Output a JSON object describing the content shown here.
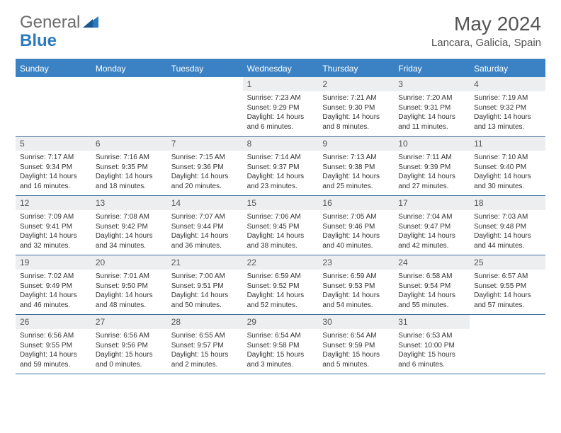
{
  "logo": {
    "text1": "General",
    "text2": "Blue"
  },
  "title": "May 2024",
  "location": "Lancara, Galicia, Spain",
  "colors": {
    "header_bg": "#3b82c4",
    "daynum_bg": "#eceef0",
    "border": "#3b6fa0"
  },
  "daynames": [
    "Sunday",
    "Monday",
    "Tuesday",
    "Wednesday",
    "Thursday",
    "Friday",
    "Saturday"
  ],
  "weeks": [
    [
      {
        "n": "",
        "sr": "",
        "ss": "",
        "dl": ""
      },
      {
        "n": "",
        "sr": "",
        "ss": "",
        "dl": ""
      },
      {
        "n": "",
        "sr": "",
        "ss": "",
        "dl": ""
      },
      {
        "n": "1",
        "sr": "Sunrise: 7:23 AM",
        "ss": "Sunset: 9:29 PM",
        "dl": "Daylight: 14 hours and 6 minutes."
      },
      {
        "n": "2",
        "sr": "Sunrise: 7:21 AM",
        "ss": "Sunset: 9:30 PM",
        "dl": "Daylight: 14 hours and 8 minutes."
      },
      {
        "n": "3",
        "sr": "Sunrise: 7:20 AM",
        "ss": "Sunset: 9:31 PM",
        "dl": "Daylight: 14 hours and 11 minutes."
      },
      {
        "n": "4",
        "sr": "Sunrise: 7:19 AM",
        "ss": "Sunset: 9:32 PM",
        "dl": "Daylight: 14 hours and 13 minutes."
      }
    ],
    [
      {
        "n": "5",
        "sr": "Sunrise: 7:17 AM",
        "ss": "Sunset: 9:34 PM",
        "dl": "Daylight: 14 hours and 16 minutes."
      },
      {
        "n": "6",
        "sr": "Sunrise: 7:16 AM",
        "ss": "Sunset: 9:35 PM",
        "dl": "Daylight: 14 hours and 18 minutes."
      },
      {
        "n": "7",
        "sr": "Sunrise: 7:15 AM",
        "ss": "Sunset: 9:36 PM",
        "dl": "Daylight: 14 hours and 20 minutes."
      },
      {
        "n": "8",
        "sr": "Sunrise: 7:14 AM",
        "ss": "Sunset: 9:37 PM",
        "dl": "Daylight: 14 hours and 23 minutes."
      },
      {
        "n": "9",
        "sr": "Sunrise: 7:13 AM",
        "ss": "Sunset: 9:38 PM",
        "dl": "Daylight: 14 hours and 25 minutes."
      },
      {
        "n": "10",
        "sr": "Sunrise: 7:11 AM",
        "ss": "Sunset: 9:39 PM",
        "dl": "Daylight: 14 hours and 27 minutes."
      },
      {
        "n": "11",
        "sr": "Sunrise: 7:10 AM",
        "ss": "Sunset: 9:40 PM",
        "dl": "Daylight: 14 hours and 30 minutes."
      }
    ],
    [
      {
        "n": "12",
        "sr": "Sunrise: 7:09 AM",
        "ss": "Sunset: 9:41 PM",
        "dl": "Daylight: 14 hours and 32 minutes."
      },
      {
        "n": "13",
        "sr": "Sunrise: 7:08 AM",
        "ss": "Sunset: 9:42 PM",
        "dl": "Daylight: 14 hours and 34 minutes."
      },
      {
        "n": "14",
        "sr": "Sunrise: 7:07 AM",
        "ss": "Sunset: 9:44 PM",
        "dl": "Daylight: 14 hours and 36 minutes."
      },
      {
        "n": "15",
        "sr": "Sunrise: 7:06 AM",
        "ss": "Sunset: 9:45 PM",
        "dl": "Daylight: 14 hours and 38 minutes."
      },
      {
        "n": "16",
        "sr": "Sunrise: 7:05 AM",
        "ss": "Sunset: 9:46 PM",
        "dl": "Daylight: 14 hours and 40 minutes."
      },
      {
        "n": "17",
        "sr": "Sunrise: 7:04 AM",
        "ss": "Sunset: 9:47 PM",
        "dl": "Daylight: 14 hours and 42 minutes."
      },
      {
        "n": "18",
        "sr": "Sunrise: 7:03 AM",
        "ss": "Sunset: 9:48 PM",
        "dl": "Daylight: 14 hours and 44 minutes."
      }
    ],
    [
      {
        "n": "19",
        "sr": "Sunrise: 7:02 AM",
        "ss": "Sunset: 9:49 PM",
        "dl": "Daylight: 14 hours and 46 minutes."
      },
      {
        "n": "20",
        "sr": "Sunrise: 7:01 AM",
        "ss": "Sunset: 9:50 PM",
        "dl": "Daylight: 14 hours and 48 minutes."
      },
      {
        "n": "21",
        "sr": "Sunrise: 7:00 AM",
        "ss": "Sunset: 9:51 PM",
        "dl": "Daylight: 14 hours and 50 minutes."
      },
      {
        "n": "22",
        "sr": "Sunrise: 6:59 AM",
        "ss": "Sunset: 9:52 PM",
        "dl": "Daylight: 14 hours and 52 minutes."
      },
      {
        "n": "23",
        "sr": "Sunrise: 6:59 AM",
        "ss": "Sunset: 9:53 PM",
        "dl": "Daylight: 14 hours and 54 minutes."
      },
      {
        "n": "24",
        "sr": "Sunrise: 6:58 AM",
        "ss": "Sunset: 9:54 PM",
        "dl": "Daylight: 14 hours and 55 minutes."
      },
      {
        "n": "25",
        "sr": "Sunrise: 6:57 AM",
        "ss": "Sunset: 9:55 PM",
        "dl": "Daylight: 14 hours and 57 minutes."
      }
    ],
    [
      {
        "n": "26",
        "sr": "Sunrise: 6:56 AM",
        "ss": "Sunset: 9:55 PM",
        "dl": "Daylight: 14 hours and 59 minutes."
      },
      {
        "n": "27",
        "sr": "Sunrise: 6:56 AM",
        "ss": "Sunset: 9:56 PM",
        "dl": "Daylight: 15 hours and 0 minutes."
      },
      {
        "n": "28",
        "sr": "Sunrise: 6:55 AM",
        "ss": "Sunset: 9:57 PM",
        "dl": "Daylight: 15 hours and 2 minutes."
      },
      {
        "n": "29",
        "sr": "Sunrise: 6:54 AM",
        "ss": "Sunset: 9:58 PM",
        "dl": "Daylight: 15 hours and 3 minutes."
      },
      {
        "n": "30",
        "sr": "Sunrise: 6:54 AM",
        "ss": "Sunset: 9:59 PM",
        "dl": "Daylight: 15 hours and 5 minutes."
      },
      {
        "n": "31",
        "sr": "Sunrise: 6:53 AM",
        "ss": "Sunset: 10:00 PM",
        "dl": "Daylight: 15 hours and 6 minutes."
      },
      {
        "n": "",
        "sr": "",
        "ss": "",
        "dl": ""
      }
    ]
  ]
}
